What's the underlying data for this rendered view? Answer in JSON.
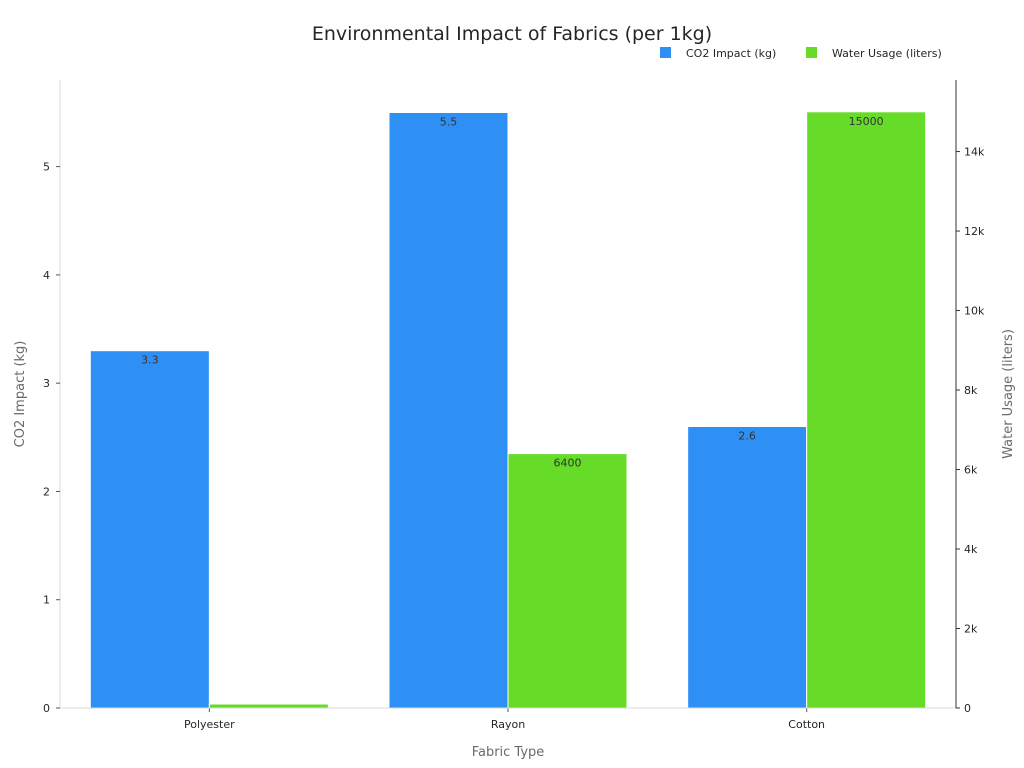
{
  "chart_data": {
    "type": "bar",
    "title": "Environmental Impact of Fabrics (per 1kg)",
    "xlabel": "Fabric Type",
    "categories": [
      "Polyester",
      "Rayon",
      "Cotton"
    ],
    "series": [
      {
        "name": "CO2 Impact (kg)",
        "axis": "left",
        "color": "#2e90f5",
        "values": [
          3.3,
          5.5,
          2.6
        ],
        "labels": [
          "3.3",
          "5.5",
          "2.6"
        ]
      },
      {
        "name": "Water Usage (liters)",
        "axis": "right",
        "color": "#66db28",
        "values": [
          100,
          6400,
          15000
        ],
        "labels": [
          "",
          "6400",
          "15000"
        ]
      }
    ],
    "y_left": {
      "label": "CO2 Impact (kg)",
      "ylim": [
        0,
        5.8
      ],
      "ticks": [
        0,
        1,
        2,
        3,
        4,
        5
      ],
      "tick_labels": [
        "0",
        "1",
        "2",
        "3",
        "4",
        "5"
      ]
    },
    "y_right": {
      "label": "Water Usage (liters)",
      "ylim": [
        0,
        15800
      ],
      "ticks": [
        0,
        2000,
        4000,
        6000,
        8000,
        10000,
        12000,
        14000
      ],
      "tick_labels": [
        "0",
        "2k",
        "4k",
        "6k",
        "8k",
        "10k",
        "12k",
        "14k"
      ]
    },
    "legend": "top-right",
    "grid": false
  }
}
